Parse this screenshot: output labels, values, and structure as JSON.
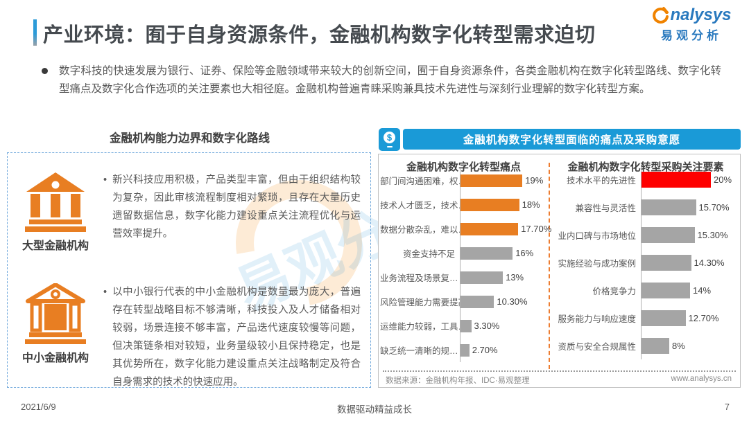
{
  "page": {
    "title": "产业环境：囿于自身资源条件，金融机构数字化转型需求迫切",
    "footer": {
      "date": "2021/6/9",
      "slogan": "数据驱动精益成长",
      "page_number": "7"
    }
  },
  "logo": {
    "brand_en": "nalysys",
    "brand_cn": "易观分析"
  },
  "intro": {
    "text": "数字科技的快速发展为银行、证券、保险等金融领域带来较大的创新空间，囿于自身资源条件，各类金融机构在数字化转型路线、数字化转型痛点及数字化合作选项的关注要素也大相径庭。金融机构普遍青睐采购兼具技术先进性与深刻行业理解的数字化转型方案。"
  },
  "left_panel": {
    "title": "金融机构能力边界和数字化路线",
    "items": [
      {
        "label": "大型金融机构",
        "icon": "bank-large-icon",
        "bullet": "•",
        "text": "新兴科技应用积极，产品类型丰富，但由于组织结构较为复杂，因此审核流程制度相对繁琐，且存在大量历史遗留数据信息，数字化能力建设重点关注流程优化与运营效率提升。"
      },
      {
        "label": "中小金融机构",
        "icon": "bank-small-icon",
        "bullet": "•",
        "text": "以中小银行代表的中小金融机构是数量最为庞大，普遍存在转型战略目标不够清晰，科技投入及人才储备相对较弱，场景连接不够丰富，产品迭代速度较慢等问题，但决策链条相对较短，业务量级较小且保持稳定，也是其优势所在，数字化能力建设重点关注战略制定及符合自身需求的技术的快速应用。"
      }
    ]
  },
  "right_panel": {
    "header": "金融机构数字化转型面临的痛点及采购意愿",
    "header_icon": "mobile-payment-icon",
    "source": "数据来源：金融机构年报、IDC·易观整理",
    "website": "www.analysys.cn"
  },
  "colors": {
    "accent_blue": "#1a9ad7",
    "orange": "#e87e22",
    "gray_bar": "#a5a5a5",
    "red": "#fe0000",
    "logo_blue": "#2979be",
    "logo_orange": "#f08300"
  },
  "watermark": {
    "cn": "易观分析",
    "en": "analysys"
  },
  "chart_data": [
    {
      "type": "bar",
      "orientation": "horizontal",
      "title": "金融机构数字化转型痛点",
      "categories": [
        "部门间沟通困难，权…",
        "技术人才匮乏，技术…",
        "数据分散杂乱，难以…",
        "资金支持不足",
        "业务流程及场景复…",
        "风险管理能力需要提高",
        "运维能力较弱，工具…",
        "缺乏统一清晰的规…"
      ],
      "values": [
        19,
        18,
        17.7,
        16,
        13,
        10.3,
        3.3,
        2.7
      ],
      "value_labels": [
        "19%",
        "18%",
        "17.70%",
        "16%",
        "13%",
        "10.30%",
        "3.30%",
        "2.70%"
      ],
      "bar_colors": [
        "#e87e22",
        "#e87e22",
        "#e87e22",
        "#a5a5a5",
        "#a5a5a5",
        "#a5a5a5",
        "#a5a5a5",
        "#a5a5a5"
      ],
      "xlim": [
        0,
        20
      ],
      "xlabel": "",
      "ylabel": "",
      "grid": false,
      "legend": "none"
    },
    {
      "type": "bar",
      "orientation": "horizontal",
      "title": "金融机构数字化转型采购关注要素",
      "categories": [
        "技术水平的先进性",
        "兼容性与灵活性",
        "业内口碑与市场地位",
        "实施经验与成功案例",
        "价格竞争力",
        "服务能力与响应速度",
        "资质与安全合规属性"
      ],
      "values": [
        20,
        15.7,
        15.3,
        14.3,
        14,
        12.7,
        8
      ],
      "value_labels": [
        "20%",
        "15.70%",
        "15.30%",
        "14.30%",
        "14%",
        "12.70%",
        "8%"
      ],
      "bar_colors": [
        "#fe0000",
        "#a5a5a5",
        "#a5a5a5",
        "#a5a5a5",
        "#a5a5a5",
        "#a5a5a5",
        "#a5a5a5"
      ],
      "xlim": [
        0,
        20
      ],
      "xlabel": "",
      "ylabel": "",
      "grid": false,
      "legend": "none"
    }
  ]
}
